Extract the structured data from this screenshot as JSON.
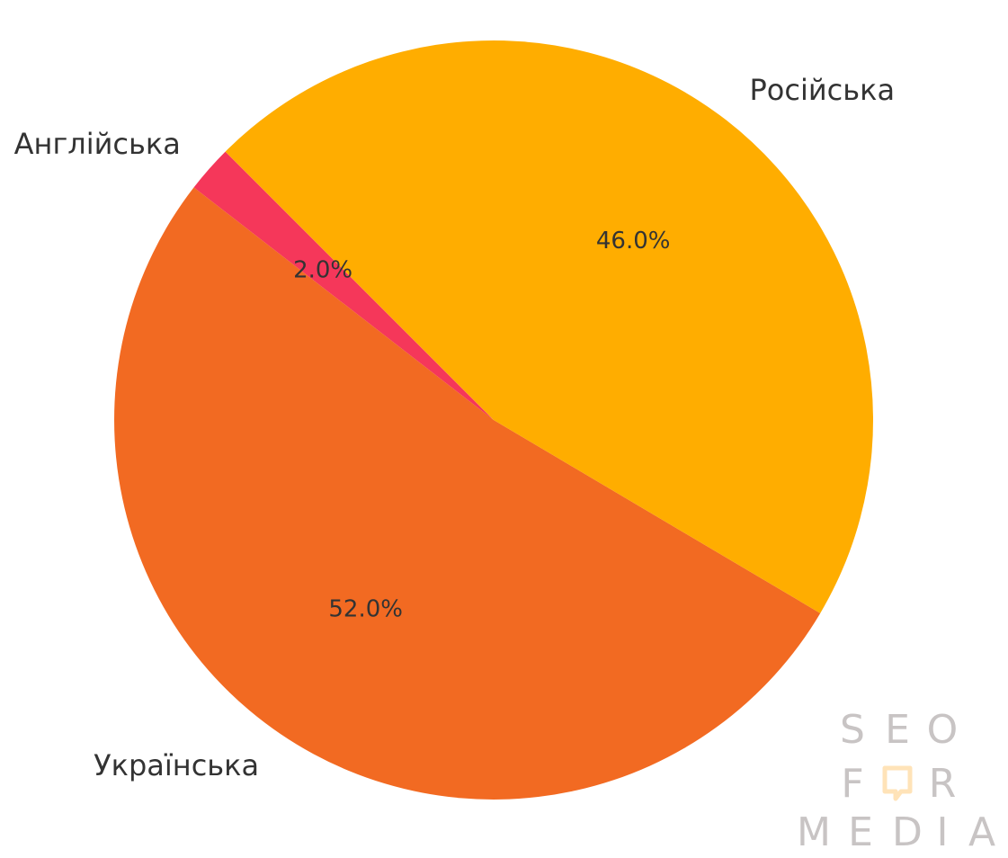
{
  "chart_data": {
    "type": "pie",
    "categories": [
      "Англійська",
      "Українська",
      "Російська"
    ],
    "values": [
      2.0,
      52.0,
      46.0
    ],
    "value_labels": [
      "2.0%",
      "52.0%",
      "46.0%"
    ],
    "colors": [
      "#f5375a",
      "#f26a22",
      "#ffad00"
    ],
    "title": "",
    "legend": "none",
    "start_angle_deg_from_top_counterclockwise": 45
  },
  "watermark": {
    "row1": "SEO",
    "row2_left": "F",
    "row2_icon": "speech-bubble-o-icon",
    "row2_right": "R",
    "row3": "MEDIA",
    "letter_color": "#c8c4c4",
    "icon_color": "#ffe3b8"
  }
}
